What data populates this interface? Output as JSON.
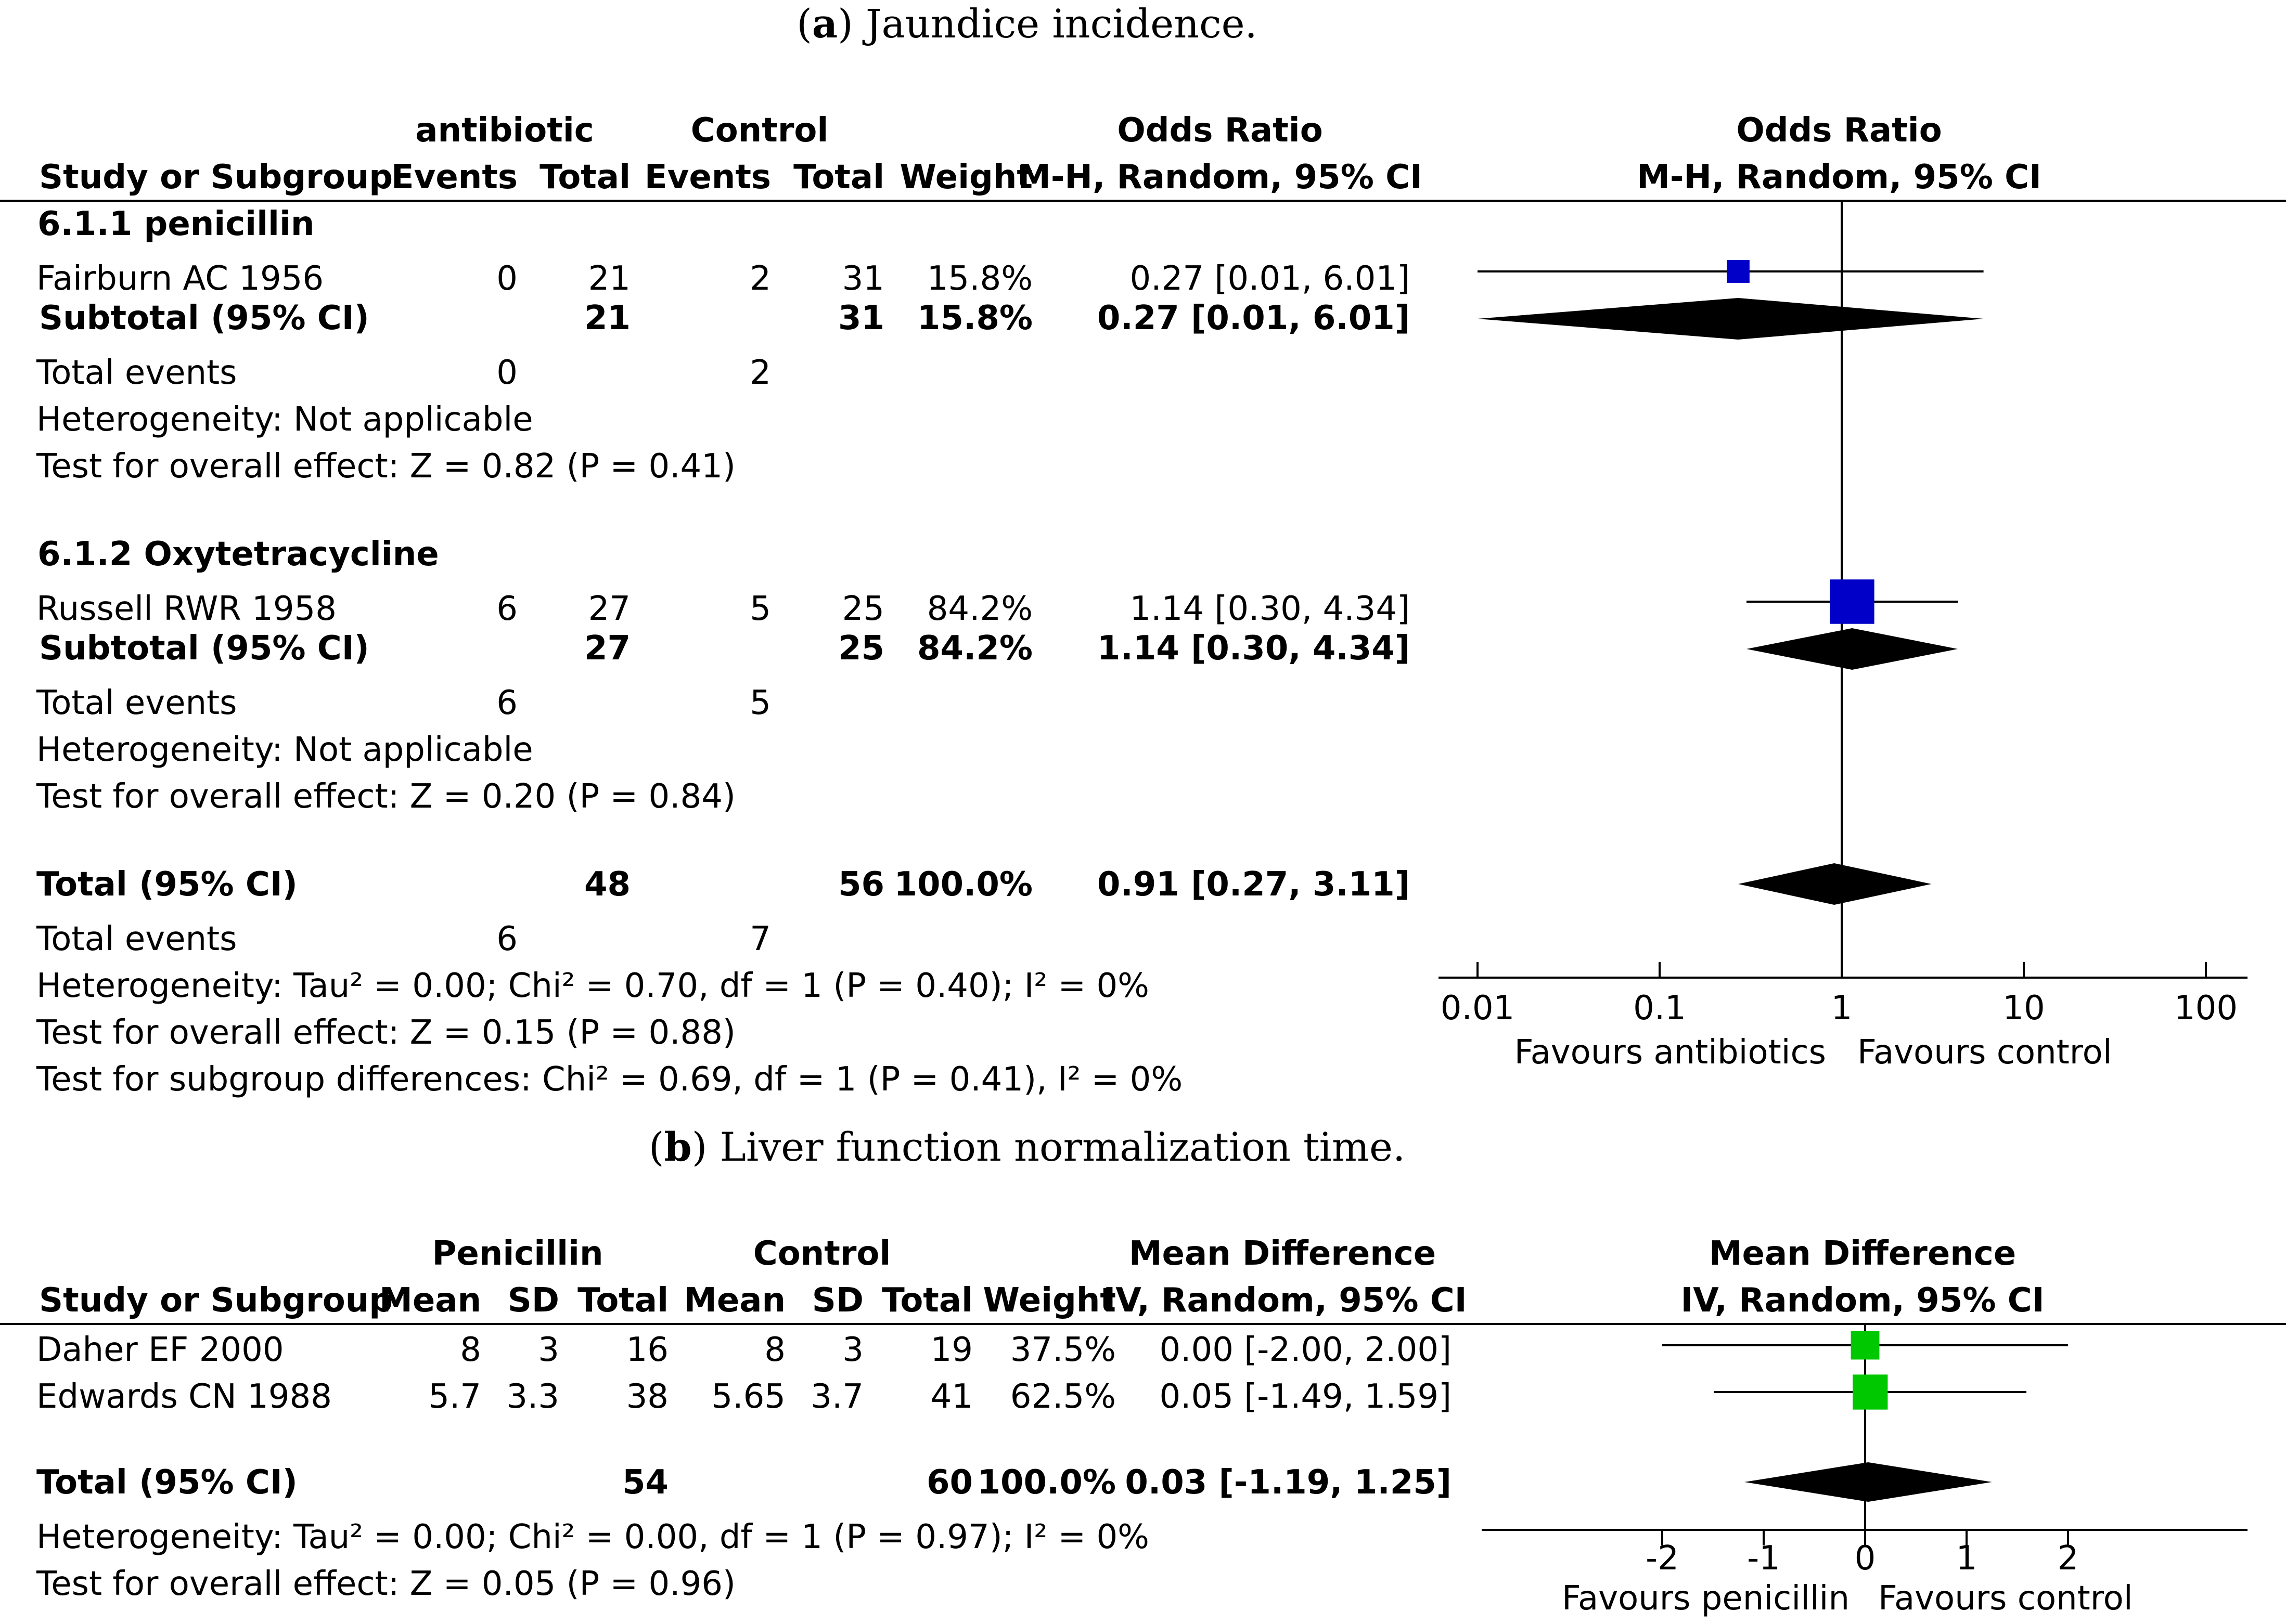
{
  "panel_a": {
    "caption_letter": "a",
    "caption_text": "Jaundice incidence.",
    "header": {
      "group1": "antibiotic",
      "group2": "Control",
      "or_label": "Odds Ratio",
      "plot_label": "Odds Ratio",
      "col_study": "Study or Subgroup",
      "col_events1": "Events",
      "col_total1": "Total",
      "col_events2": "Events",
      "col_total2": "Total",
      "col_weight": "Weight",
      "col_method": "M-H, Random, 95% CI",
      "plot_method": "M-H, Random, 95% CI"
    },
    "subgroups": [
      {
        "title": "6.1.1 penicillin",
        "study": {
          "name": "Fairburn AC 1956",
          "events1": "0",
          "total1": "21",
          "events2": "2",
          "total2": "31",
          "weight": "15.8%",
          "ci": "0.27 [0.01, 6.01]"
        },
        "subtotal": {
          "label": "Subtotal (95% CI)",
          "total1": "21",
          "total2": "31",
          "weight": "15.8%",
          "ci": "0.27 [0.01, 6.01]"
        },
        "total_events": {
          "label": "Total events",
          "events1": "0",
          "events2": "2"
        },
        "heterogeneity": "Heterogeneity: Not applicable",
        "overall": "Test for overall effect: Z = 0.82 (P = 0.41)"
      },
      {
        "title": "6.1.2 Oxytetracycline",
        "study": {
          "name": "Russell RWR 1958",
          "events1": "6",
          "total1": "27",
          "events2": "5",
          "total2": "25",
          "weight": "84.2%",
          "ci": "1.14 [0.30, 4.34]"
        },
        "subtotal": {
          "label": "Subtotal (95% CI)",
          "total1": "27",
          "total2": "25",
          "weight": "84.2%",
          "ci": "1.14 [0.30, 4.34]"
        },
        "total_events": {
          "label": "Total events",
          "events1": "6",
          "events2": "5"
        },
        "heterogeneity": "Heterogeneity: Not applicable",
        "overall": "Test for overall effect: Z = 0.20 (P = 0.84)"
      }
    ],
    "total": {
      "label": "Total (95% CI)",
      "total1": "48",
      "total2": "56",
      "weight": "100.0%",
      "ci": "0.91 [0.27, 3.11]"
    },
    "total_events": {
      "label": "Total events",
      "events1": "6",
      "events2": "7"
    },
    "heterogeneity": "Heterogeneity: Tau² = 0.00; Chi² = 0.70, df = 1 (P = 0.40); I² = 0%",
    "overall": "Test for overall effect: Z = 0.15 (P = 0.88)",
    "subgroup_diff": "Test for subgroup differences: Chi² = 0.69, df = 1 (P = 0.41), I² = 0%",
    "favours_left": "Favours antibiotics",
    "favours_right": "Favours control"
  },
  "panel_b": {
    "caption_letter": "b",
    "caption_text": "Liver function normalization time.",
    "header": {
      "group1": "Penicillin",
      "group2": "Control",
      "md_label": "Mean Difference",
      "plot_label": "Mean Difference",
      "col_study": "Study or Subgroup",
      "col_mean1": "Mean",
      "col_sd1": "SD",
      "col_total1": "Total",
      "col_mean2": "Mean",
      "col_sd2": "SD",
      "col_total2": "Total",
      "col_weight": "Weight",
      "col_method": "IV, Random, 95% CI",
      "plot_method": "IV, Random, 95% CI"
    },
    "studies": [
      {
        "name": "Daher EF 2000",
        "mean1": "8",
        "sd1": "3",
        "total1": "16",
        "mean2": "8",
        "sd2": "3",
        "total2": "19",
        "weight": "37.5%",
        "ci": "0.00 [-2.00, 2.00]"
      },
      {
        "name": "Edwards CN 1988",
        "mean1": "5.7",
        "sd1": "3.3",
        "total1": "38",
        "mean2": "5.65",
        "sd2": "3.7",
        "total2": "41",
        "weight": "62.5%",
        "ci": "0.05 [-1.49, 1.59]"
      }
    ],
    "total": {
      "label": "Total (95% CI)",
      "total1": "54",
      "total2": "60",
      "weight": "100.0%",
      "ci": "0.03 [-1.19, 1.25]"
    },
    "heterogeneity": "Heterogeneity: Tau² = 0.00; Chi² = 0.00, df = 1 (P = 0.97); I² = 0%",
    "overall": "Test for overall effect: Z = 0.05 (P = 0.96)",
    "favours_left": "Favours penicillin",
    "favours_right": "Favours control"
  },
  "chart_data": [
    {
      "type": "forest",
      "scale": "log",
      "title": "Jaundice incidence.",
      "measure": "Odds Ratio (M-H, Random, 95% CI)",
      "xlim": [
        0.01,
        100
      ],
      "ticks": [
        0.01,
        0.1,
        1,
        10,
        100
      ],
      "tick_labels": [
        "0.01",
        "0.1",
        "1",
        "10",
        "100"
      ],
      "null_value": 1,
      "square_color": "#0000c8",
      "studies": [
        {
          "name": "Fairburn AC 1956",
          "est": 0.27,
          "lo": 0.01,
          "hi": 6.01,
          "weight": 15.8
        },
        {
          "name": "Russell RWR 1958",
          "est": 1.14,
          "lo": 0.3,
          "hi": 4.34,
          "weight": 84.2
        }
      ],
      "diamonds": [
        {
          "name": "Subtotal 6.1.1 penicillin",
          "est": 0.27,
          "lo": 0.01,
          "hi": 6.01
        },
        {
          "name": "Subtotal 6.1.2 Oxytetracycline",
          "est": 1.14,
          "lo": 0.3,
          "hi": 4.34
        },
        {
          "name": "Total (95% CI)",
          "est": 0.91,
          "lo": 0.27,
          "hi": 3.11
        }
      ]
    },
    {
      "type": "forest",
      "scale": "linear",
      "title": "Liver function normalization time.",
      "measure": "Mean Difference (IV, Random, 95% CI)",
      "ticks": [
        -2,
        -1,
        0,
        1,
        2
      ],
      "tick_labels": [
        "-2",
        "-1",
        "0",
        "1",
        "2"
      ],
      "null_value": 0,
      "square_color": "#00c800",
      "studies": [
        {
          "name": "Daher EF 2000",
          "est": 0.0,
          "lo": -2.0,
          "hi": 2.0,
          "weight": 37.5
        },
        {
          "name": "Edwards CN 1988",
          "est": 0.05,
          "lo": -1.49,
          "hi": 1.59,
          "weight": 62.5
        }
      ],
      "diamonds": [
        {
          "name": "Total (95% CI)",
          "est": 0.03,
          "lo": -1.19,
          "hi": 1.25
        }
      ]
    }
  ]
}
